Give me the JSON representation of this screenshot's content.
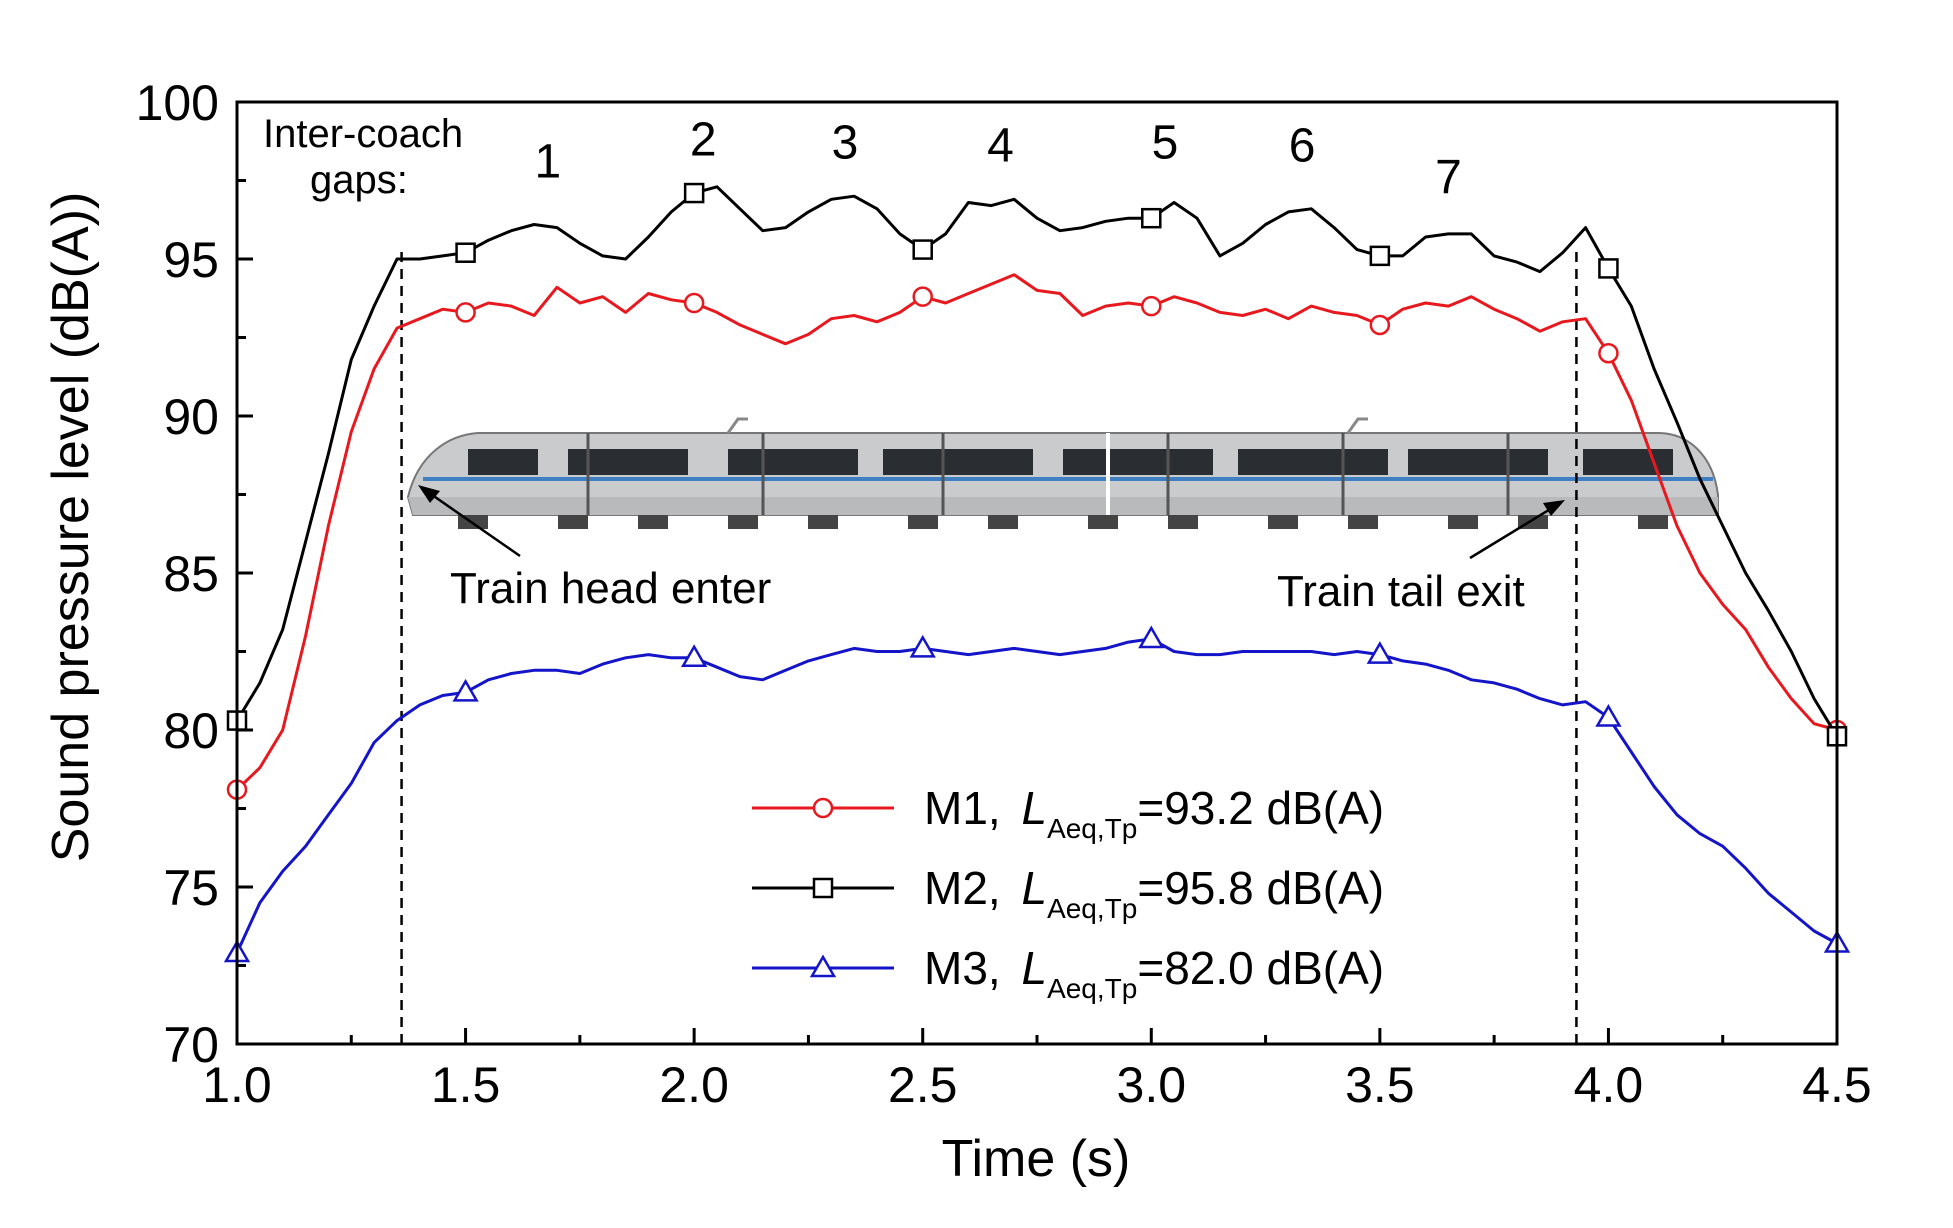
{
  "chart_data": {
    "type": "line",
    "xlabel": "Time (s)",
    "ylabel": "Sound pressure level (dB(A))",
    "xlim": [
      1.0,
      4.5
    ],
    "ylim": [
      70,
      100
    ],
    "x_ticks": [
      "1.0",
      "1.5",
      "2.0",
      "2.5",
      "3.0",
      "3.5",
      "4.0",
      "4.5"
    ],
    "y_ticks": [
      "70",
      "75",
      "80",
      "85",
      "90",
      "95",
      "100"
    ],
    "grid": false,
    "legend_position": "bottom-right",
    "annotations": {
      "gaps_label_line1": "Inter-coach",
      "gaps_label_line2": "gaps:",
      "gap_numbers": [
        {
          "label": "1",
          "x": 1.68,
          "y": 97.6
        },
        {
          "label": "2",
          "x": 2.02,
          "y": 98.3
        },
        {
          "label": "3",
          "x": 2.33,
          "y": 98.2
        },
        {
          "label": "4",
          "x": 2.67,
          "y": 98.1
        },
        {
          "label": "5",
          "x": 3.03,
          "y": 98.2
        },
        {
          "label": "6",
          "x": 3.33,
          "y": 98.1
        },
        {
          "label": "7",
          "x": 3.65,
          "y": 97.1
        }
      ],
      "vlines": [
        1.36,
        3.93
      ],
      "head_text": "Train head enter",
      "tail_text": "Train tail exit",
      "train_image": "train-illustration"
    },
    "series": [
      {
        "name": "M1",
        "legend_prefix": "M1,",
        "metric_symbol": "L",
        "metric_subscript": "Aeq,Tp",
        "legend_value": "=93.2 dB(A)",
        "color": "#e8191e",
        "marker": "circle",
        "x": [
          1.0,
          1.05,
          1.1,
          1.15,
          1.2,
          1.25,
          1.3,
          1.35,
          1.4,
          1.45,
          1.5,
          1.55,
          1.6,
          1.65,
          1.7,
          1.75,
          1.8,
          1.85,
          1.9,
          1.95,
          2.0,
          2.05,
          2.1,
          2.15,
          2.2,
          2.25,
          2.3,
          2.35,
          2.4,
          2.45,
          2.5,
          2.55,
          2.6,
          2.65,
          2.7,
          2.75,
          2.8,
          2.85,
          2.9,
          2.95,
          3.0,
          3.05,
          3.1,
          3.15,
          3.2,
          3.25,
          3.3,
          3.35,
          3.4,
          3.45,
          3.5,
          3.55,
          3.6,
          3.65,
          3.7,
          3.75,
          3.8,
          3.85,
          3.9,
          3.95,
          4.0,
          4.05,
          4.1,
          4.15,
          4.2,
          4.25,
          4.3,
          4.35,
          4.4,
          4.45,
          4.5
        ],
        "y": [
          78.1,
          78.8,
          80.0,
          83.0,
          86.5,
          89.5,
          91.5,
          92.8,
          93.1,
          93.4,
          93.3,
          93.6,
          93.5,
          93.2,
          94.1,
          93.6,
          93.8,
          93.3,
          93.9,
          93.7,
          93.6,
          93.3,
          92.9,
          92.6,
          92.3,
          92.6,
          93.1,
          93.2,
          93.0,
          93.3,
          93.8,
          93.6,
          93.9,
          94.2,
          94.5,
          94.0,
          93.9,
          93.2,
          93.5,
          93.6,
          93.5,
          93.8,
          93.6,
          93.3,
          93.2,
          93.4,
          93.1,
          93.5,
          93.3,
          93.2,
          92.9,
          93.4,
          93.6,
          93.5,
          93.8,
          93.4,
          93.1,
          92.7,
          93.0,
          93.1,
          92.0,
          90.5,
          88.5,
          86.5,
          85.0,
          84.0,
          83.2,
          82.0,
          81.0,
          80.2,
          80.0
        ],
        "marker_x": [
          1.0,
          1.5,
          2.0,
          2.5,
          3.0,
          3.5,
          4.0,
          4.5
        ]
      },
      {
        "name": "M2",
        "legend_prefix": "M2,",
        "metric_symbol": "L",
        "metric_subscript": "Aeq,Tp",
        "legend_value": "=95.8 dB(A)",
        "color": "#000000",
        "marker": "square",
        "x": [
          1.0,
          1.05,
          1.1,
          1.15,
          1.2,
          1.25,
          1.3,
          1.35,
          1.4,
          1.45,
          1.5,
          1.55,
          1.6,
          1.65,
          1.7,
          1.75,
          1.8,
          1.85,
          1.9,
          1.95,
          2.0,
          2.05,
          2.1,
          2.15,
          2.2,
          2.25,
          2.3,
          2.35,
          2.4,
          2.45,
          2.5,
          2.55,
          2.6,
          2.65,
          2.7,
          2.75,
          2.8,
          2.85,
          2.9,
          2.95,
          3.0,
          3.05,
          3.1,
          3.15,
          3.2,
          3.25,
          3.3,
          3.35,
          3.4,
          3.45,
          3.5,
          3.55,
          3.6,
          3.65,
          3.7,
          3.75,
          3.8,
          3.85,
          3.9,
          3.95,
          4.0,
          4.05,
          4.1,
          4.15,
          4.2,
          4.25,
          4.3,
          4.35,
          4.4,
          4.45,
          4.5
        ],
        "y": [
          80.3,
          81.5,
          83.2,
          86.0,
          88.8,
          91.8,
          93.5,
          95.0,
          95.0,
          95.1,
          95.2,
          95.6,
          95.9,
          96.1,
          96.0,
          95.5,
          95.1,
          95.0,
          95.7,
          96.5,
          97.1,
          97.3,
          96.6,
          95.9,
          96.0,
          96.5,
          96.9,
          97.0,
          96.6,
          95.8,
          95.3,
          95.8,
          96.8,
          96.7,
          96.9,
          96.3,
          95.9,
          96.0,
          96.2,
          96.3,
          96.3,
          96.8,
          96.3,
          95.1,
          95.5,
          96.1,
          96.5,
          96.6,
          96.0,
          95.3,
          95.1,
          95.1,
          95.7,
          95.8,
          95.8,
          95.1,
          94.9,
          94.6,
          95.2,
          96.0,
          94.7,
          93.5,
          91.5,
          89.8,
          88.0,
          86.5,
          85.0,
          83.8,
          82.5,
          81.0,
          79.8
        ],
        "marker_x": [
          1.0,
          1.5,
          2.0,
          2.5,
          3.0,
          3.5,
          4.0,
          4.5
        ]
      },
      {
        "name": "M3",
        "legend_prefix": "M3,",
        "metric_symbol": "L",
        "metric_subscript": "Aeq,Tp",
        "legend_value": "=82.0 dB(A)",
        "color": "#1414c8",
        "marker": "triangle",
        "x": [
          1.0,
          1.05,
          1.1,
          1.15,
          1.2,
          1.25,
          1.3,
          1.35,
          1.4,
          1.45,
          1.5,
          1.55,
          1.6,
          1.65,
          1.7,
          1.75,
          1.8,
          1.85,
          1.9,
          1.95,
          2.0,
          2.05,
          2.1,
          2.15,
          2.2,
          2.25,
          2.3,
          2.35,
          2.4,
          2.45,
          2.5,
          2.55,
          2.6,
          2.65,
          2.7,
          2.75,
          2.8,
          2.85,
          2.9,
          2.95,
          3.0,
          3.05,
          3.1,
          3.15,
          3.2,
          3.25,
          3.3,
          3.35,
          3.4,
          3.45,
          3.5,
          3.55,
          3.6,
          3.65,
          3.7,
          3.75,
          3.8,
          3.85,
          3.9,
          3.95,
          4.0,
          4.05,
          4.1,
          4.15,
          4.2,
          4.25,
          4.3,
          4.35,
          4.4,
          4.45,
          4.5
        ],
        "y": [
          72.9,
          74.5,
          75.5,
          76.3,
          77.3,
          78.3,
          79.6,
          80.3,
          80.8,
          81.1,
          81.2,
          81.6,
          81.8,
          81.9,
          81.9,
          81.8,
          82.1,
          82.3,
          82.4,
          82.3,
          82.3,
          82.0,
          81.7,
          81.6,
          81.9,
          82.2,
          82.4,
          82.6,
          82.5,
          82.5,
          82.6,
          82.5,
          82.4,
          82.5,
          82.6,
          82.5,
          82.4,
          82.5,
          82.6,
          82.8,
          82.9,
          82.5,
          82.4,
          82.4,
          82.5,
          82.5,
          82.5,
          82.5,
          82.4,
          82.5,
          82.4,
          82.2,
          82.1,
          81.9,
          81.6,
          81.5,
          81.3,
          81.0,
          80.8,
          80.9,
          80.4,
          79.3,
          78.2,
          77.3,
          76.7,
          76.3,
          75.6,
          74.8,
          74.2,
          73.6,
          73.2
        ],
        "marker_x": [
          1.0,
          1.5,
          2.0,
          2.5,
          3.0,
          3.5,
          4.0,
          4.5
        ]
      }
    ]
  }
}
